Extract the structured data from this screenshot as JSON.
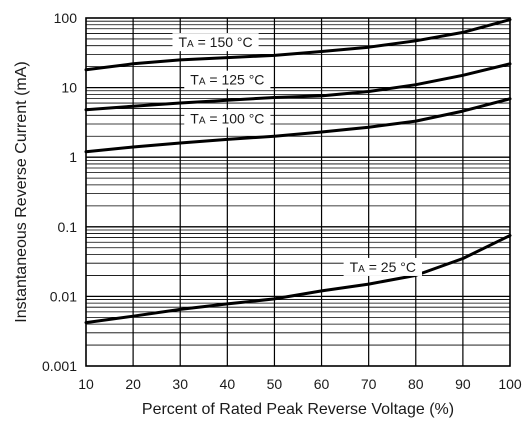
{
  "chart_data": {
    "type": "line",
    "xlabel": "Percent of Rated Peak Reverse Voltage (%)",
    "ylabel": "Instantaneous Reverse Current (mA)",
    "xlim": [
      10,
      100
    ],
    "ylim": [
      0.001,
      100
    ],
    "yscale": "log",
    "grid": true,
    "x_ticks": [
      "10",
      "20",
      "30",
      "40",
      "50",
      "60",
      "70",
      "80",
      "90",
      "100"
    ],
    "y_ticks": [
      "0.001",
      "0.01",
      "0.1",
      "1",
      "10",
      "100"
    ],
    "series": [
      {
        "name": "TA = 150 °C",
        "x": [
          10,
          20,
          30,
          40,
          50,
          60,
          70,
          80,
          90,
          100
        ],
        "y": [
          18,
          22,
          25,
          27,
          29,
          33,
          38,
          47,
          62,
          95
        ]
      },
      {
        "name": "TA = 125 °C",
        "x": [
          10,
          20,
          30,
          40,
          50,
          60,
          70,
          80,
          90,
          100
        ],
        "y": [
          4.8,
          5.4,
          6.0,
          6.6,
          7.2,
          7.6,
          8.8,
          11,
          15,
          22
        ]
      },
      {
        "name": "TA = 100 °C",
        "x": [
          10,
          20,
          30,
          40,
          50,
          60,
          70,
          80,
          90,
          100
        ],
        "y": [
          1.2,
          1.4,
          1.6,
          1.8,
          2.0,
          2.3,
          2.7,
          3.3,
          4.6,
          6.9
        ]
      },
      {
        "name": "TA = 25 °C",
        "x": [
          10,
          20,
          30,
          40,
          50,
          60,
          70,
          80,
          90,
          100
        ],
        "y": [
          0.0042,
          0.0052,
          0.0065,
          0.0078,
          0.0092,
          0.012,
          0.015,
          0.02,
          0.035,
          0.075
        ]
      }
    ],
    "annotations": [
      {
        "prefix": "T",
        "sub": "A",
        "suffix": " = 150 °C",
        "x": 37.5,
        "y": 45
      },
      {
        "prefix": "T",
        "sub": "A",
        "suffix": " = 125 °C",
        "x": 40,
        "y": 13
      },
      {
        "prefix": "T",
        "sub": "A",
        "suffix": " = 100 °C",
        "x": 40,
        "y": 3.6
      },
      {
        "prefix": "T",
        "sub": "A",
        "suffix": " = 25 °C",
        "x": 73,
        "y": 0.0265
      }
    ]
  }
}
